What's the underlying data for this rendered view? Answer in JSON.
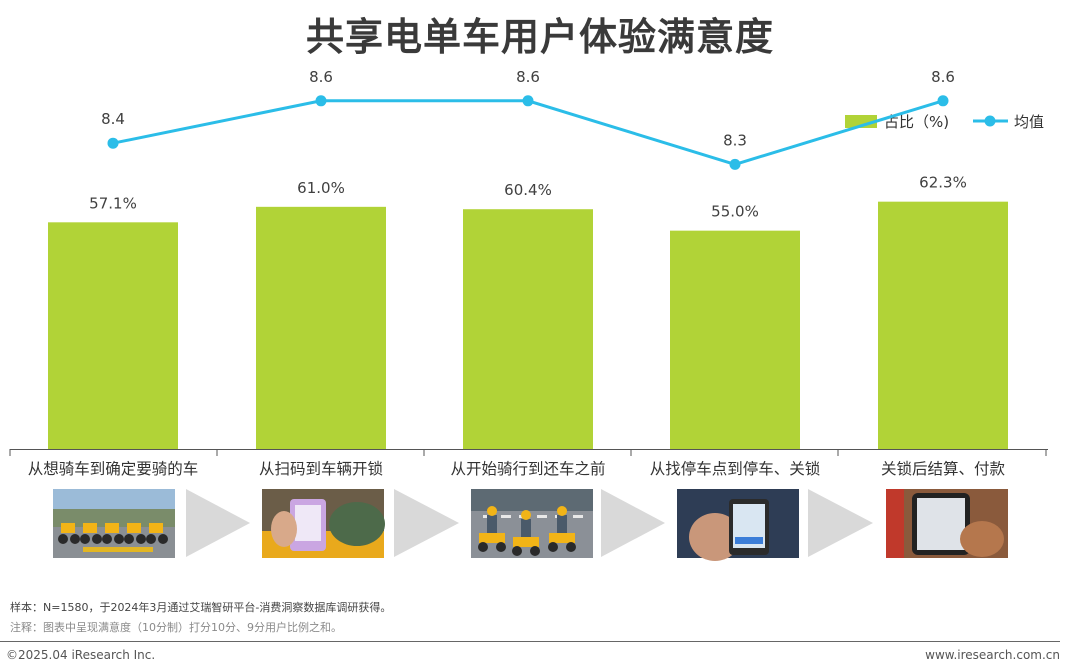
{
  "header": {
    "title": "共享电单车用户体验满意度"
  },
  "chart_data": {
    "type": "bar",
    "categories": [
      "从想骑车到确定要骑的车",
      "从扫码到车辆开锁",
      "从开始骑行到还车之前",
      "从找停车点到停车、关锁",
      "关锁后结算、付款"
    ],
    "series": [
      {
        "name": "占比（%)",
        "type": "bar",
        "values": [
          57.1,
          61.0,
          60.4,
          55.0,
          62.3
        ],
        "labels": [
          "57.1%",
          "61.0%",
          "60.4%",
          "55.0%",
          "62.3%"
        ],
        "color": "#b1d337"
      },
      {
        "name": "均值",
        "type": "line",
        "values": [
          8.4,
          8.6,
          8.6,
          8.3,
          8.6
        ],
        "labels": [
          "8.4",
          "8.6",
          "8.6",
          "8.3",
          "8.6"
        ],
        "color": "#2bbde8"
      }
    ],
    "legend": "top-right",
    "grid": false,
    "ylim": [
      0,
      100
    ],
    "y2lim": [
      7.0,
      9.0
    ]
  },
  "photos": [
    {
      "name": "bike-parking-photo",
      "icon": "bikes-parked"
    },
    {
      "name": "scan-unlock-photo",
      "icon": "phone-scan"
    },
    {
      "name": "riding-photo",
      "icon": "riders"
    },
    {
      "name": "parking-lock-photo",
      "icon": "phone-map"
    },
    {
      "name": "payment-photo",
      "icon": "phone-pay"
    }
  ],
  "notes": {
    "sample": "样本：N=1580，于2024年3月通过艾瑞智研平台-消费洞察数据库调研获得。",
    "remark": "注释：图表中呈现满意度（10分制）打分10分、9分用户比例之和。"
  },
  "footer": {
    "copyright": "©2025.04 iResearch Inc.",
    "website": "www.iresearch.com.cn"
  }
}
